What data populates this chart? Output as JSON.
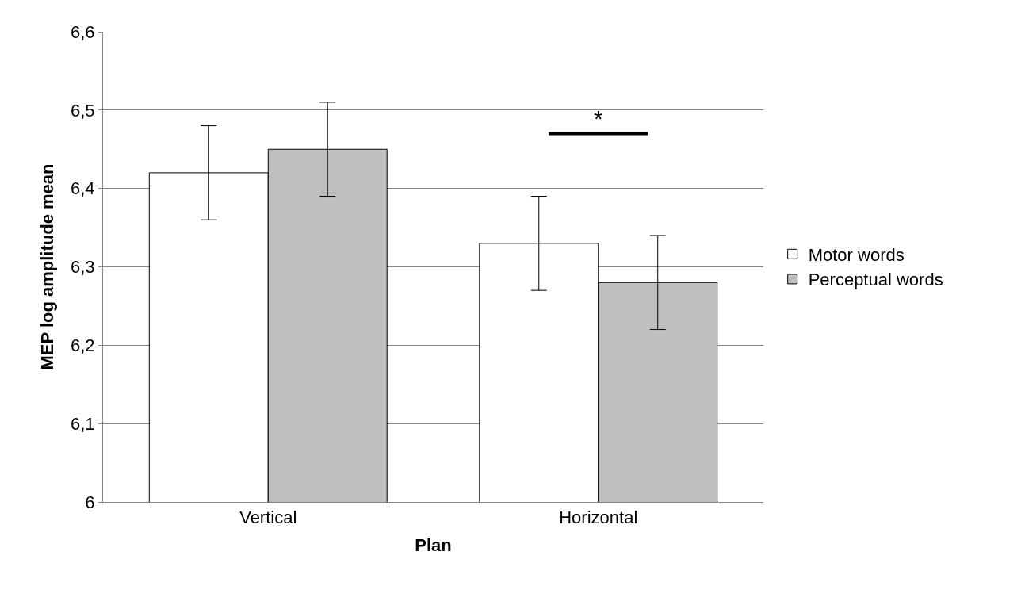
{
  "chart_data": {
    "type": "bar",
    "xlabel": "Plan",
    "ylabel": "MEP log amplitude mean",
    "categories": [
      "Vertical",
      "Horizontal"
    ],
    "series": [
      {
        "name": "Motor words",
        "color": "#ffffff",
        "values": [
          6.42,
          6.33
        ],
        "errors": [
          [
            6.36,
            6.48
          ],
          [
            6.27,
            6.39
          ]
        ]
      },
      {
        "name": "Perceptual words",
        "color": "#bfbfbf",
        "values": [
          6.45,
          6.28
        ],
        "errors": [
          [
            6.39,
            6.51
          ],
          [
            6.22,
            6.34
          ]
        ]
      }
    ],
    "ylim": [
      6,
      6.6
    ],
    "yticks": [
      6,
      {
        "value": 6.1,
        "label": "6,1"
      },
      {
        "value": 6.2,
        "label": "6,2"
      },
      {
        "value": 6.3,
        "label": "6,3"
      },
      {
        "value": 6.4,
        "label": "6,4"
      },
      {
        "value": 6.5,
        "label": "6,5"
      },
      {
        "value": 6.6,
        "label": "6,6"
      }
    ],
    "grid": "y",
    "legend": "right",
    "annotations": [
      "*"
    ]
  }
}
